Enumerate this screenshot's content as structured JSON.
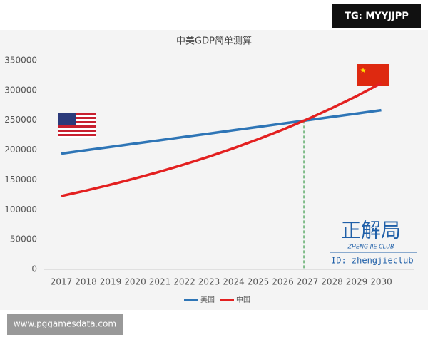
{
  "chart_data": {
    "type": "line",
    "title": "中美GDP简单测算",
    "categories": [
      "2017",
      "2018",
      "2019",
      "2020",
      "2021",
      "2022",
      "2023",
      "2024",
      "2025",
      "2026",
      "2027",
      "2028",
      "2029",
      "2030"
    ],
    "series": [
      {
        "name": "美国",
        "color": "#2e75b6",
        "values": [
          194000,
          199600,
          205200,
          210800,
          216400,
          222000,
          227600,
          233200,
          238800,
          244400,
          250000,
          255600,
          261200,
          266800
        ]
      },
      {
        "name": "中国",
        "color": "#e32020",
        "values": [
          123000,
          132100,
          141900,
          152500,
          163800,
          175900,
          189000,
          203000,
          218100,
          234300,
          251700,
          270300,
          290400,
          312000
        ]
      }
    ],
    "ylim": [
      0,
      350000
    ],
    "yticks": [
      0,
      50000,
      100000,
      150000,
      200000,
      250000,
      300000,
      350000
    ],
    "grid": false,
    "legend": "bottom"
  },
  "badge": "TG: MYYJJPP",
  "website": "www.pggamesdata.com",
  "watermark": {
    "logo": "正解局",
    "club": "ZHENG JIE CLUB",
    "id": "ID: zhengjieclub"
  }
}
